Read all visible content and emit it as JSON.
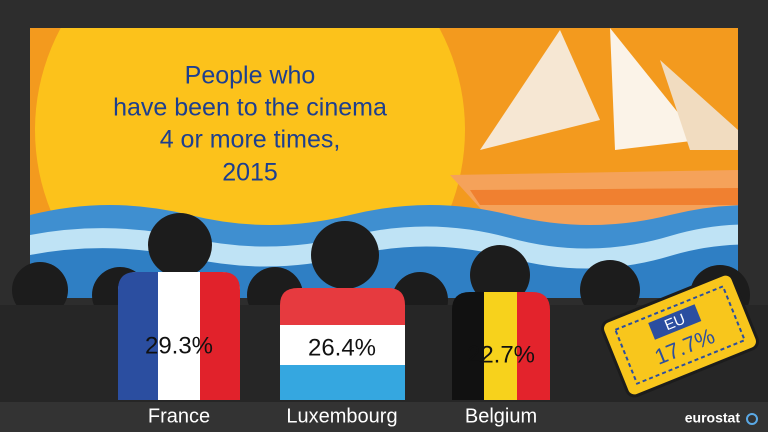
{
  "title_lines": [
    "People who",
    "have been to the cinema",
    "4 or more times,",
    "2015"
  ],
  "countries": [
    {
      "name": "France",
      "value": "29.3%"
    },
    {
      "name": "Luxembourg",
      "value": "26.4%"
    },
    {
      "name": "Belgium",
      "value": "22.7%"
    }
  ],
  "eu": {
    "label": "EU",
    "value": "17.7%"
  },
  "logo": "eurostat"
}
